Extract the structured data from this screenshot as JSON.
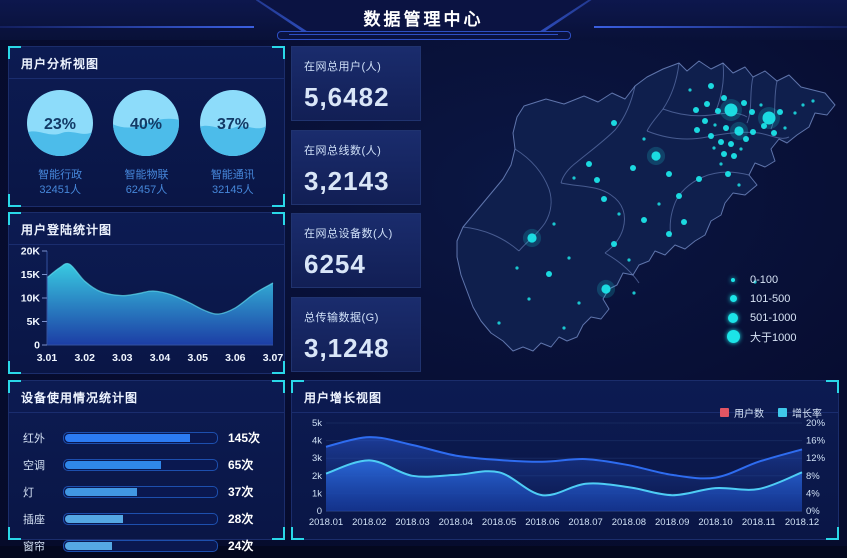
{
  "colors": {
    "accent_cyan": "#2ad8e8",
    "panel_border": "#1b2d6b",
    "bubble": "#1ce4e8",
    "kpi_bg": "#16265f",
    "legend_user_red": "#e25563",
    "legend_rate_cyan": "#3fc8ea"
  },
  "header": {
    "title": "数据管理中心"
  },
  "panels": {
    "user_analysis": {
      "title": "用户分析视图",
      "circles": [
        {
          "percent": "23%",
          "label": "智能行政",
          "count": "32451人",
          "fill": 0.66
        },
        {
          "percent": "40%",
          "label": "智能物联",
          "count": "62457人",
          "fill": 0.52
        },
        {
          "percent": "37%",
          "label": "智能通讯",
          "count": "32145人",
          "fill": 0.58
        }
      ]
    },
    "login_stats": {
      "title": "用户登陆统计图"
    },
    "device_usage": {
      "title": "设备使用情况统计图"
    },
    "user_growth": {
      "title": "用户增长视图"
    },
    "kpis": [
      {
        "label": "在网总用户(人)",
        "value": "5,6482"
      },
      {
        "label": "在网总线数(人)",
        "value": "3,2143"
      },
      {
        "label": "在网总设备数(人)",
        "value": "6254"
      },
      {
        "label": "总传输数据(G)",
        "value": "3,1248"
      }
    ]
  },
  "chart_data": [
    {
      "id": "login",
      "type": "area",
      "title": "用户登陆统计图",
      "xlabel": "",
      "ylabel": "",
      "ylim": [
        0,
        20000
      ],
      "unit": "K",
      "grid": false,
      "x_labels": [
        "3.01",
        "3.02",
        "3.03",
        "3.04",
        "3.05",
        "3.06",
        "3.07"
      ],
      "y_ticks": [
        "0",
        "5K",
        "10K",
        "15K",
        "20K"
      ],
      "points": [
        [
          0,
          14.3
        ],
        [
          0.055,
          16.4
        ],
        [
          0.1,
          17.2
        ],
        [
          0.167,
          13.6
        ],
        [
          0.24,
          11.3
        ],
        [
          0.333,
          10.5
        ],
        [
          0.41,
          11.0
        ],
        [
          0.47,
          11.5
        ],
        [
          0.55,
          10.7
        ],
        [
          0.63,
          9.0
        ],
        [
          0.7,
          7.3
        ],
        [
          0.76,
          6.6
        ],
        [
          0.833,
          7.9
        ],
        [
          0.92,
          11.0
        ],
        [
          1,
          13.2
        ]
      ]
    },
    {
      "id": "device",
      "type": "bar",
      "title": "设备使用情况统计图",
      "categories": [
        "红外",
        "空调",
        "灯",
        "插座",
        "窗帘"
      ],
      "values": [
        145,
        65,
        37,
        28,
        24
      ],
      "value_labels": [
        "145次",
        "65次",
        "37次",
        "28次",
        "24次"
      ],
      "bar_pct": [
        82,
        63,
        47,
        38,
        31
      ],
      "bar_colors": [
        "#2c7bf2",
        "#2f87ea",
        "#4197e2",
        "#55a8e4",
        "#55a8e4"
      ]
    },
    {
      "id": "growth",
      "type": "area",
      "title": "用户增长视图",
      "grid": true,
      "legend_position": "top-right",
      "categories": [
        "2018.01",
        "2018.02",
        "2018.03",
        "2018.04",
        "2018.05",
        "2018.06",
        "2018.07",
        "2018.08",
        "2018.09",
        "2018.10",
        "2018.11",
        "2018.12"
      ],
      "left_ticks": [
        "0",
        "1k",
        "2k",
        "3k",
        "4k",
        "5k"
      ],
      "right_ticks": [
        "0%",
        "4%",
        "8%",
        "12%",
        "16%",
        "20%"
      ],
      "left_ylim": [
        0,
        5000
      ],
      "right_ylim": [
        0,
        20
      ],
      "legend": [
        {
          "label": "用户数",
          "color": "#e25563"
        },
        {
          "label": "增长率",
          "color": "#3fc8ea"
        }
      ],
      "series": [
        {
          "name": "用户数",
          "axis": "left",
          "unit": "k",
          "line": "#2e6cf0",
          "values": [
            3.65,
            4.2,
            3.75,
            3.15,
            2.9,
            2.8,
            2.95,
            2.6,
            2.05,
            1.9,
            2.8,
            3.5
          ]
        },
        {
          "name": "增长率",
          "axis": "right",
          "unit": "%",
          "line": "#4ecdf5",
          "values": [
            8.5,
            11.5,
            8.0,
            8.2,
            8.8,
            3.6,
            6.2,
            5.4,
            3.6,
            5.2,
            5.0,
            8.8
          ]
        }
      ]
    },
    {
      "id": "map",
      "type": "scatter",
      "title": "",
      "bubble_color": "#1ce4e8",
      "legend": [
        {
          "label": "0-100",
          "tier": 1
        },
        {
          "label": "101-500",
          "tier": 2
        },
        {
          "label": "501-1000",
          "tier": 3
        },
        {
          "label": "大于1000",
          "tier": 4
        }
      ],
      "bubbles": [
        [
          262,
          46,
          1
        ],
        [
          283,
          42,
          2
        ],
        [
          296,
          54,
          2
        ],
        [
          279,
          60,
          2
        ],
        [
          268,
          66,
          2
        ],
        [
          290,
          67,
          2
        ],
        [
          303,
          66,
          4
        ],
        [
          316,
          59,
          2
        ],
        [
          324,
          68,
          2
        ],
        [
          333,
          61,
          1
        ],
        [
          341,
          74,
          4
        ],
        [
          352,
          68,
          2
        ],
        [
          336,
          82,
          2
        ],
        [
          325,
          88,
          2
        ],
        [
          311,
          87,
          3
        ],
        [
          298,
          84,
          2
        ],
        [
          287,
          81,
          1
        ],
        [
          277,
          77,
          2
        ],
        [
          269,
          86,
          2
        ],
        [
          283,
          92,
          2
        ],
        [
          293,
          98,
          2
        ],
        [
          303,
          100,
          2
        ],
        [
          313,
          105,
          1
        ],
        [
          296,
          110,
          2
        ],
        [
          286,
          104,
          1
        ],
        [
          306,
          112,
          2
        ],
        [
          318,
          95,
          2
        ],
        [
          346,
          89,
          2
        ],
        [
          357,
          84,
          1
        ],
        [
          367,
          69,
          1
        ],
        [
          375,
          61,
          1
        ],
        [
          385,
          57,
          1
        ],
        [
          228,
          112,
          3
        ],
        [
          205,
          124,
          2
        ],
        [
          241,
          130,
          2
        ],
        [
          251,
          152,
          2
        ],
        [
          216,
          95,
          1
        ],
        [
          186,
          79,
          2
        ],
        [
          161,
          120,
          2
        ],
        [
          146,
          134,
          1
        ],
        [
          169,
          136,
          2
        ],
        [
          176,
          155,
          2
        ],
        [
          191,
          170,
          1
        ],
        [
          231,
          160,
          1
        ],
        [
          256,
          178,
          2
        ],
        [
          271,
          135,
          2
        ],
        [
          300,
          130,
          2
        ],
        [
          311,
          141,
          1
        ],
        [
          293,
          120,
          1
        ],
        [
          104,
          194,
          3
        ],
        [
          126,
          180,
          1
        ],
        [
          89,
          224,
          1
        ],
        [
          121,
          230,
          2
        ],
        [
          141,
          214,
          1
        ],
        [
          186,
          200,
          2
        ],
        [
          201,
          216,
          1
        ],
        [
          178,
          245,
          3
        ],
        [
          151,
          259,
          1
        ],
        [
          136,
          284,
          1
        ],
        [
          71,
          279,
          1
        ],
        [
          101,
          255,
          1
        ],
        [
          206,
          249,
          1
        ],
        [
          216,
          176,
          2
        ],
        [
          241,
          190,
          2
        ],
        [
          327,
          238,
          1
        ]
      ]
    }
  ]
}
